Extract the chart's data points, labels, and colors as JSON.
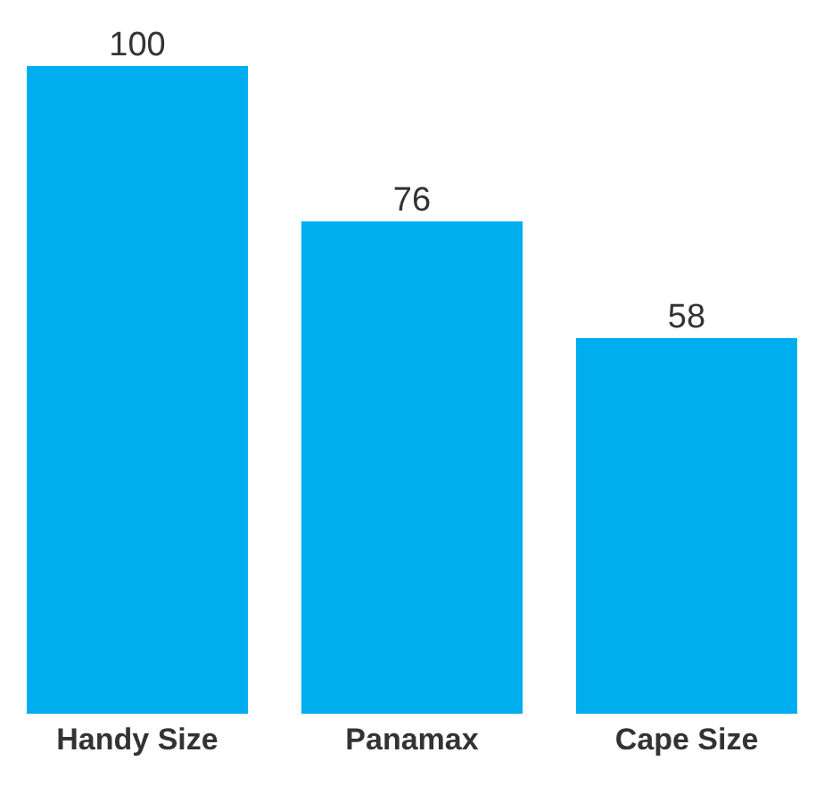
{
  "chart_data": {
    "type": "bar",
    "categories": [
      "Handy Size",
      "Panamax",
      "Cape Size"
    ],
    "values": [
      100,
      76,
      58
    ],
    "color": "#00adee",
    "data_labels": true
  }
}
